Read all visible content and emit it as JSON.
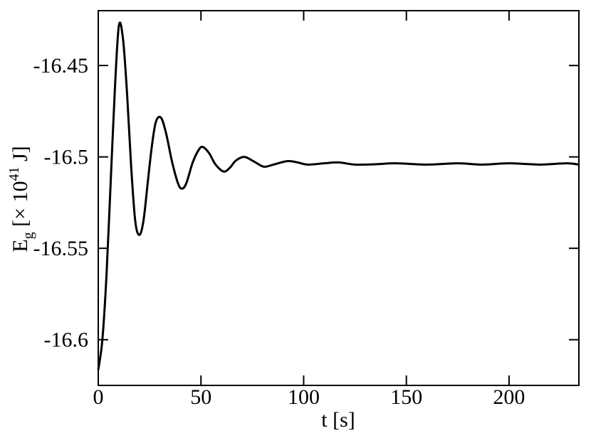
{
  "chart_data": {
    "type": "line",
    "xlabel": "t [s]",
    "ylabel": [
      "E",
      "g",
      " [× 10",
      "41",
      " J]"
    ],
    "xlim": [
      0,
      234
    ],
    "ylim": [
      -16.625,
      -16.42
    ],
    "xticks": [
      0,
      50,
      100,
      150,
      200
    ],
    "yticks": [
      -16.45,
      -16.5,
      -16.55,
      -16.6
    ],
    "series": [
      {
        "color": "#000000",
        "x": [
          0,
          2,
          4,
          6,
          8,
          10,
          12,
          14,
          16,
          18,
          20,
          22,
          24,
          26,
          28,
          30.5,
          33,
          36,
          39,
          41,
          43,
          46,
          49,
          51,
          54,
          57,
          61,
          64,
          67,
          71,
          75,
          78,
          81,
          86,
          92,
          97,
          102,
          110,
          117,
          125,
          135,
          145,
          160,
          175,
          187,
          200,
          215,
          228,
          234
        ],
        "values": [
          -16.6165,
          -16.6,
          -16.565,
          -16.515,
          -16.465,
          -16.4285,
          -16.435,
          -16.465,
          -16.505,
          -16.535,
          -16.5427,
          -16.535,
          -16.515,
          -16.495,
          -16.481,
          -16.4785,
          -16.487,
          -16.503,
          -16.515,
          -16.5173,
          -16.514,
          -16.503,
          -16.496,
          -16.4946,
          -16.498,
          -16.504,
          -16.508,
          -16.506,
          -16.502,
          -16.5,
          -16.502,
          -16.504,
          -16.5054,
          -16.504,
          -16.5023,
          -16.503,
          -16.5042,
          -16.5035,
          -16.503,
          -16.5042,
          -16.504,
          -16.5035,
          -16.5042,
          -16.5035,
          -16.5042,
          -16.5035,
          -16.5042,
          -16.5035,
          -16.5042
        ]
      }
    ]
  }
}
